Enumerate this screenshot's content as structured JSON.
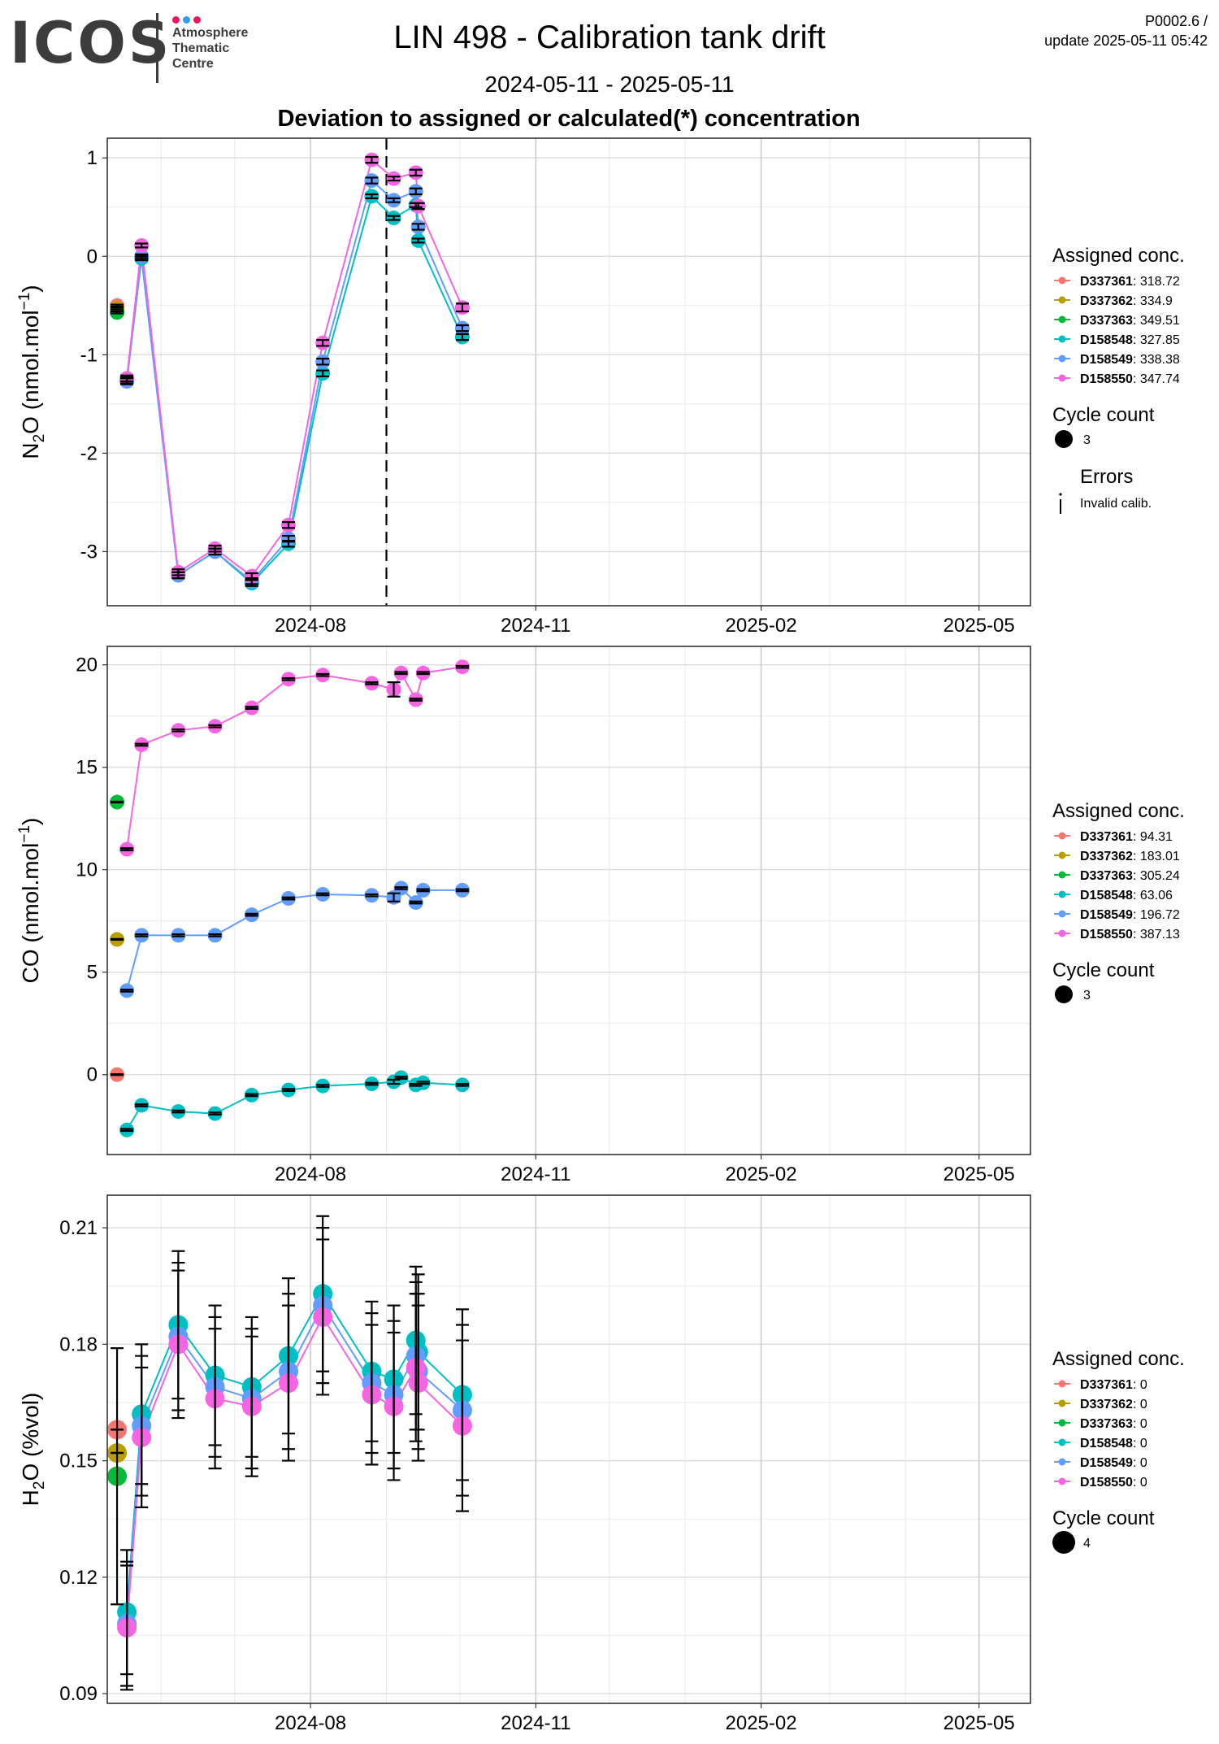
{
  "header": {
    "logo_text": "ICOS",
    "logo_sub": [
      "Atmosphere",
      "Thematic",
      "Centre"
    ],
    "logo_dot_colors": [
      "#e6195a",
      "#2e9ee8",
      "#e6195a"
    ],
    "title": "LIN 498 - Calibration tank drift",
    "date_range": "2024-05-11 - 2025-05-11",
    "subtitle": "Deviation to assigned or calculated(*) concentration",
    "version": "P0002.6 /",
    "update": "update  2025-05-11 05:42"
  },
  "colors": {
    "D337361": "#f8766d",
    "D337362": "#b79f00",
    "D337363": "#00ba38",
    "D158548": "#00bfc4",
    "D158549": "#619cff",
    "D158550": "#f564e3"
  },
  "chart_data": [
    {
      "type": "scatter",
      "ylabel": "N2O (nmol.mol-1)",
      "ylim": [
        -3.55,
        1.2
      ],
      "yticks": [
        1,
        0,
        -1,
        -2,
        -3
      ],
      "ytick_labels": [
        "1",
        "0",
        "-1",
        "-2",
        "-3"
      ],
      "xlim": [
        "2024-05-10",
        "2025-05-22"
      ],
      "xticks": [
        "2024-08-01",
        "2024-11-01",
        "2025-02-01",
        "2025-05-01"
      ],
      "xtick_labels": [
        "2024-08",
        "2024-11",
        "2025-02",
        "2025-05"
      ],
      "vline": "2024-09-01",
      "point_size": 9,
      "legend": {
        "title": "Assigned conc.",
        "entries": [
          {
            "name": "D337361",
            "value": ": 318.72"
          },
          {
            "name": "D337362",
            "value": ": 334.9"
          },
          {
            "name": "D337363",
            "value": ": 349.51"
          },
          {
            "name": "D158548",
            "value": ": 327.85"
          },
          {
            "name": "D158549",
            "value": ": 338.38"
          },
          {
            "name": "D158550",
            "value": ": 347.74"
          }
        ],
        "size_title": "Cycle count",
        "size_value": "3",
        "error_title": "Errors",
        "error_label": "Invalid calib."
      },
      "series": [
        {
          "name": "D337361",
          "x": [
            "2024-05-14"
          ],
          "y": [
            -0.5
          ],
          "err": [
            0.01
          ]
        },
        {
          "name": "D337362",
          "x": [
            "2024-05-14"
          ],
          "y": [
            -0.53
          ],
          "err": [
            0.01
          ]
        },
        {
          "name": "D337363",
          "x": [
            "2024-05-14"
          ],
          "y": [
            -0.57
          ],
          "err": [
            0.01
          ]
        },
        {
          "name": "D158548",
          "x": [
            "2024-05-18",
            "2024-05-24",
            "2024-06-08",
            "2024-06-23",
            "2024-07-08",
            "2024-07-23",
            "2024-08-06",
            "2024-08-26",
            "2024-09-04",
            "2024-09-13",
            "2024-09-14",
            "2024-10-02"
          ],
          "y": [
            -1.26,
            -0.02,
            -3.24,
            -3.0,
            -3.32,
            -2.92,
            -1.19,
            0.61,
            0.39,
            0.52,
            0.16,
            -0.82
          ],
          "err": [
            0.03,
            0.02,
            0.03,
            0.03,
            0.03,
            0.03,
            0.03,
            0.02,
            0.02,
            0.02,
            0.02,
            0.03
          ]
        },
        {
          "name": "D158549",
          "x": [
            "2024-05-18",
            "2024-05-24",
            "2024-06-08",
            "2024-06-23",
            "2024-07-08",
            "2024-07-23",
            "2024-08-06",
            "2024-08-26",
            "2024-09-04",
            "2024-09-13",
            "2024-09-14",
            "2024-10-02"
          ],
          "y": [
            -1.27,
            0.0,
            -3.24,
            -3.0,
            -3.3,
            -2.87,
            -1.07,
            0.77,
            0.57,
            0.66,
            0.3,
            -0.73
          ],
          "err": [
            0.03,
            0.02,
            0.03,
            0.03,
            0.03,
            0.03,
            0.03,
            0.03,
            0.02,
            0.03,
            0.03,
            0.03
          ]
        },
        {
          "name": "D158550",
          "x": [
            "2024-05-18",
            "2024-05-24",
            "2024-06-08",
            "2024-06-23",
            "2024-07-08",
            "2024-07-23",
            "2024-08-06",
            "2024-08-26",
            "2024-09-04",
            "2024-09-13",
            "2024-09-14",
            "2024-10-02"
          ],
          "y": [
            -1.24,
            0.11,
            -3.21,
            -2.97,
            -3.25,
            -2.73,
            -0.88,
            0.98,
            0.79,
            0.85,
            0.51,
            -0.52
          ],
          "err": [
            0.03,
            0.02,
            0.03,
            0.03,
            0.03,
            0.03,
            0.03,
            0.03,
            0.02,
            0.03,
            0.03,
            0.04
          ]
        }
      ]
    },
    {
      "type": "scatter",
      "ylabel": "CO (nmol.mol-1)",
      "ylim": [
        -3.9,
        20.9
      ],
      "yticks": [
        20,
        15,
        10,
        5,
        0
      ],
      "ytick_labels": [
        "20",
        "15",
        "10",
        "5",
        "0"
      ],
      "xlim": [
        "2024-05-10",
        "2025-05-22"
      ],
      "xticks": [
        "2024-08-01",
        "2024-11-01",
        "2025-02-01",
        "2025-05-01"
      ],
      "xtick_labels": [
        "2024-08",
        "2024-11",
        "2025-02",
        "2025-05"
      ],
      "point_size": 9,
      "legend": {
        "title": "Assigned conc.",
        "entries": [
          {
            "name": "D337361",
            "value": ": 94.31"
          },
          {
            "name": "D337362",
            "value": ": 183.01"
          },
          {
            "name": "D337363",
            "value": ": 305.24"
          },
          {
            "name": "D158548",
            "value": ": 63.06"
          },
          {
            "name": "D158549",
            "value": ": 196.72"
          },
          {
            "name": "D158550",
            "value": ": 387.13"
          }
        ],
        "size_title": "Cycle count",
        "size_value": "3"
      },
      "series": [
        {
          "name": "D337361",
          "x": [
            "2024-05-14"
          ],
          "y": [
            0.0
          ],
          "err": [
            0.02
          ]
        },
        {
          "name": "D337362",
          "x": [
            "2024-05-14"
          ],
          "y": [
            6.6
          ],
          "err": [
            0.02
          ]
        },
        {
          "name": "D337363",
          "x": [
            "2024-05-14"
          ],
          "y": [
            13.3
          ],
          "err": [
            0.02
          ]
        },
        {
          "name": "D158548",
          "x": [
            "2024-05-18",
            "2024-05-24",
            "2024-06-08",
            "2024-06-23",
            "2024-07-08",
            "2024-07-23",
            "2024-08-06",
            "2024-08-26",
            "2024-09-04",
            "2024-09-07",
            "2024-09-13",
            "2024-09-16",
            "2024-10-02"
          ],
          "y": [
            -2.7,
            -1.5,
            -1.8,
            -1.9,
            -1.0,
            -0.75,
            -0.55,
            -0.45,
            -0.35,
            -0.15,
            -0.5,
            -0.4,
            -0.5
          ],
          "err": [
            0.05,
            0.05,
            0.05,
            0.05,
            0.05,
            0.05,
            0.05,
            0.05,
            0.1,
            0.05,
            0.05,
            0.05,
            0.05
          ]
        },
        {
          "name": "D158549",
          "x": [
            "2024-05-18",
            "2024-05-24",
            "2024-06-08",
            "2024-06-23",
            "2024-07-08",
            "2024-07-23",
            "2024-08-06",
            "2024-08-26",
            "2024-09-04",
            "2024-09-07",
            "2024-09-13",
            "2024-09-16",
            "2024-10-02"
          ],
          "y": [
            4.1,
            6.8,
            6.8,
            6.8,
            7.8,
            8.6,
            8.8,
            8.75,
            8.65,
            9.1,
            8.4,
            9.0,
            9.0
          ],
          "err": [
            0.05,
            0.05,
            0.05,
            0.05,
            0.05,
            0.05,
            0.05,
            0.05,
            0.2,
            0.05,
            0.05,
            0.05,
            0.05
          ]
        },
        {
          "name": "D158550",
          "x": [
            "2024-05-18",
            "2024-05-24",
            "2024-06-08",
            "2024-06-23",
            "2024-07-08",
            "2024-07-23",
            "2024-08-06",
            "2024-08-26",
            "2024-09-04",
            "2024-09-07",
            "2024-09-13",
            "2024-09-16",
            "2024-10-02"
          ],
          "y": [
            11.0,
            16.1,
            16.8,
            17.0,
            17.9,
            19.3,
            19.5,
            19.1,
            18.8,
            19.6,
            18.3,
            19.6,
            19.9
          ],
          "err": [
            0.05,
            0.05,
            0.05,
            0.05,
            0.05,
            0.05,
            0.05,
            0.05,
            0.35,
            0.05,
            0.05,
            0.05,
            0.05
          ]
        }
      ]
    },
    {
      "type": "scatter",
      "ylabel": "H2O (%vol)",
      "ylim": [
        0.0875,
        0.2184
      ],
      "yticks": [
        0.21,
        0.18,
        0.15,
        0.12,
        0.09
      ],
      "ytick_labels": [
        "0.21",
        "0.18",
        "0.15",
        "0.12",
        "0.09"
      ],
      "xlim": [
        "2024-05-10",
        "2025-05-22"
      ],
      "xticks": [
        "2024-08-01",
        "2024-11-01",
        "2025-02-01",
        "2025-05-01"
      ],
      "xtick_labels": [
        "2024-08",
        "2024-11",
        "2025-02",
        "2025-05"
      ],
      "point_size": 12,
      "legend": {
        "title": "Assigned conc.",
        "entries": [
          {
            "name": "D337361",
            "value": ": 0"
          },
          {
            "name": "D337362",
            "value": ": 0"
          },
          {
            "name": "D337363",
            "value": ": 0"
          },
          {
            "name": "D158548",
            "value": ": 0"
          },
          {
            "name": "D158549",
            "value": ": 0"
          },
          {
            "name": "D158550",
            "value": ": 0"
          }
        ],
        "size_title": "Cycle count",
        "size_value": "4"
      },
      "series": [
        {
          "name": "D337361",
          "x": [
            "2024-05-14"
          ],
          "y": [
            0.158
          ],
          "err": [
            0.0
          ]
        },
        {
          "name": "D337362",
          "x": [
            "2024-05-14"
          ],
          "y": [
            0.152
          ],
          "err": [
            0.0
          ]
        },
        {
          "name": "D337363",
          "x": [
            "2024-05-14"
          ],
          "y": [
            0.146
          ],
          "err": [
            0.033
          ]
        },
        {
          "name": "D158548",
          "x": [
            "2024-05-18",
            "2024-05-24",
            "2024-06-08",
            "2024-06-23",
            "2024-07-08",
            "2024-07-23",
            "2024-08-06",
            "2024-08-26",
            "2024-09-04",
            "2024-09-13",
            "2024-09-14",
            "2024-10-02"
          ],
          "y": [
            0.111,
            0.162,
            0.185,
            0.172,
            0.169,
            0.177,
            0.193,
            0.173,
            0.171,
            0.181,
            0.178,
            0.167
          ],
          "err": [
            0.016,
            0.018,
            0.019,
            0.018,
            0.018,
            0.02,
            0.02,
            0.018,
            0.019,
            0.019,
            0.02,
            0.022
          ]
        },
        {
          "name": "D158549",
          "x": [
            "2024-05-18",
            "2024-05-24",
            "2024-06-08",
            "2024-06-23",
            "2024-07-08",
            "2024-07-23",
            "2024-08-06",
            "2024-08-26",
            "2024-09-04",
            "2024-09-13",
            "2024-09-14",
            "2024-10-02"
          ],
          "y": [
            0.108,
            0.159,
            0.182,
            0.169,
            0.166,
            0.173,
            0.19,
            0.17,
            0.167,
            0.177,
            0.173,
            0.163
          ],
          "err": [
            0.016,
            0.018,
            0.019,
            0.018,
            0.018,
            0.02,
            0.02,
            0.018,
            0.019,
            0.019,
            0.02,
            0.022
          ]
        },
        {
          "name": "D158550",
          "x": [
            "2024-05-18",
            "2024-05-24",
            "2024-06-08",
            "2024-06-23",
            "2024-07-08",
            "2024-07-23",
            "2024-08-06",
            "2024-08-26",
            "2024-09-04",
            "2024-09-13",
            "2024-09-14",
            "2024-10-02"
          ],
          "y": [
            0.107,
            0.156,
            0.18,
            0.166,
            0.164,
            0.17,
            0.187,
            0.167,
            0.164,
            0.174,
            0.17,
            0.159
          ],
          "err": [
            0.016,
            0.018,
            0.019,
            0.018,
            0.018,
            0.02,
            0.02,
            0.018,
            0.019,
            0.019,
            0.02,
            0.022
          ]
        }
      ]
    }
  ]
}
